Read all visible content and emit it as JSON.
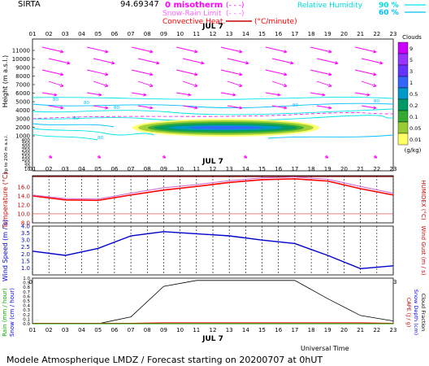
{
  "header": {
    "site": "SIRTA",
    "site_value": "94.69347",
    "legend": {
      "isotherm": "0 misotherm",
      "snow_rain": "Snow-Rain Limit",
      "convective": "Convective Heat.",
      "convective_unit": "(°C/minute)",
      "dashes": "(- - -)",
      "rh_label": "Relative Humidity",
      "rh_90": "90 %",
      "rh_60": "60 %"
    }
  },
  "footer": {
    "title": "Modele Atmospherique LMDZ / Forecast starting on 20200707 at 0hUT",
    "time_label": "Universal Time"
  },
  "colors": {
    "wind_arrow": "#ff00ff",
    "rh_90": "#00e5e5",
    "rh_60": "#00bfff",
    "temperature": "#ff0000",
    "humidex": "#cc66cc",
    "wind_speed": "#0000cc",
    "rain": "#00aa00",
    "snow": "#0000ff",
    "cloud_fraction": "#000000",
    "cape": "#ff0000"
  },
  "chart_data": [
    {
      "name": "wind-clouds",
      "type": "heatmap",
      "date_label": "JUL 7",
      "hours": [
        "01",
        "02",
        "03",
        "04",
        "05",
        "06",
        "07",
        "08",
        "09",
        "10",
        "11",
        "12",
        "13",
        "14",
        "15",
        "16",
        "17",
        "18",
        "19",
        "20",
        "21",
        "22",
        "23"
      ],
      "ylabel": "Height (m a.s.l.)",
      "y_ticks_upper": [
        "11000",
        "10000",
        "9000",
        "8000",
        "7000",
        "6000",
        "5000",
        "4000",
        "3000",
        "2000",
        "1000"
      ],
      "y_ticks_lower": [
        "400",
        "350",
        "300",
        "250",
        "200",
        "150",
        "100",
        "50",
        "20",
        "10"
      ],
      "ylabel_lower": "Up to 200 m a.s.l.",
      "clouds_title": "Clouds",
      "clouds_unit": "(g/kg)",
      "cloud_scale": [
        {
          "label": "9",
          "color": "#cc00ff"
        },
        {
          "label": "5",
          "color": "#9933ff"
        },
        {
          "label": "3",
          "color": "#6633ff"
        },
        {
          "label": "1",
          "color": "#3366ff"
        },
        {
          "label": "0.5",
          "color": "#0099cc"
        },
        {
          "label": "0.2",
          "color": "#009966"
        },
        {
          "label": "0.1",
          "color": "#33aa33"
        },
        {
          "label": "0.05",
          "color": "#99cc33"
        },
        {
          "label": "0.01",
          "color": "#ffff66"
        }
      ],
      "rh_contour_label": "80"
    },
    {
      "name": "temperature",
      "type": "line",
      "date_label": "JUL 7",
      "ylabel": "Temperature (°C)",
      "ylabel_right": "HUMIDEX (°C)",
      "yticks": [
        "16.0",
        "14.0",
        "12.0",
        "10.0",
        "8.0"
      ],
      "ylim": [
        8,
        18.5
      ],
      "hours": [
        1,
        3,
        5,
        7,
        9,
        11,
        13,
        15,
        17,
        19,
        21,
        23
      ],
      "series": [
        {
          "name": "Temperature",
          "values": [
            14.0,
            13.1,
            13.0,
            14.2,
            15.3,
            16.1,
            17.0,
            17.6,
            17.8,
            17.3,
            15.6,
            14.2
          ]
        },
        {
          "name": "HUMIDEX",
          "values": [
            14.2,
            13.4,
            13.3,
            14.6,
            15.8,
            16.5,
            17.4,
            18.0,
            18.2,
            17.7,
            16.1,
            14.6
          ]
        }
      ]
    },
    {
      "name": "wind-speed",
      "type": "line",
      "ylabel": "Wind Speed (m / s)",
      "ylabel_right": "Wind Gust (m / s)",
      "yticks": [
        "4.0",
        "3.5",
        "3.0",
        "2.5",
        "2.0",
        "1.5",
        "1.0"
      ],
      "ylim": [
        0.5,
        4.0
      ],
      "hours": [
        1,
        3,
        5,
        7,
        9,
        11,
        13,
        15,
        17,
        19,
        21,
        23
      ],
      "series": [
        {
          "name": "Wind Speed",
          "values": [
            2.2,
            1.9,
            2.4,
            3.3,
            3.6,
            3.45,
            3.3,
            3.0,
            2.75,
            1.9,
            0.95,
            1.15
          ]
        }
      ]
    },
    {
      "name": "precipitation",
      "type": "line",
      "date_label": "JUL 7",
      "ylabel_left_1": "Rain (mm / hour)",
      "ylabel_left_2": "Snow (cm / hour)",
      "ylabel_right_1": "CAPE (J / g)",
      "ylabel_right_2": "Snow Depth (cm)",
      "ylabel_right_3": "Cloud Fraction",
      "yticks": [
        "1.0",
        "0.9",
        "0.8",
        "0.7",
        "0.6",
        "0.5",
        "0.4",
        "0.3",
        "0.2",
        "0.1",
        "0.0"
      ],
      "ylim": [
        0,
        1.0
      ],
      "hours": [
        1,
        3,
        5,
        7,
        9,
        11,
        13,
        15,
        17,
        19,
        21,
        23
      ],
      "series": [
        {
          "name": "Cloud Fraction",
          "values": [
            0.0,
            0.0,
            0.0,
            0.15,
            0.82,
            0.95,
            0.95,
            0.95,
            0.95,
            0.55,
            0.18,
            0.06
          ]
        },
        {
          "name": "CAPE",
          "values": [
            0.01,
            0.01,
            0.01,
            0.01,
            0.02,
            0.02,
            0.02,
            0.02,
            0.02,
            0.02,
            0.02,
            0.01
          ]
        },
        {
          "name": "Rain",
          "values": [
            0,
            0,
            0,
            0,
            0,
            0,
            0,
            0,
            0,
            0,
            0,
            0
          ]
        }
      ]
    }
  ]
}
